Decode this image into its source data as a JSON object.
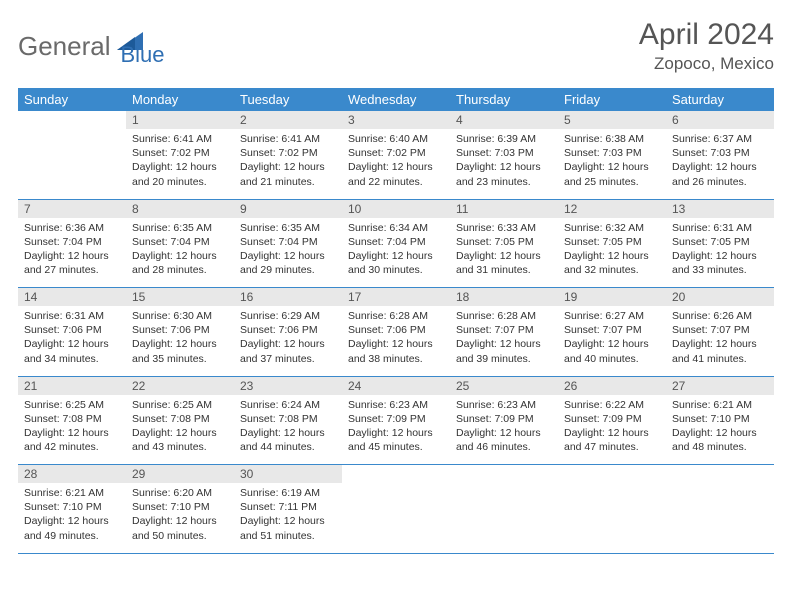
{
  "logo": {
    "part1": "General",
    "part2": "Blue"
  },
  "title": "April 2024",
  "location": "Zopoco, Mexico",
  "colors": {
    "header_bg": "#3a89cc",
    "header_fg": "#ffffff",
    "daynum_bg": "#e8e8e8",
    "border": "#3a89cc",
    "logo_gray": "#6a6a6a",
    "logo_blue": "#2f6fb3"
  },
  "weekdays": [
    "Sunday",
    "Monday",
    "Tuesday",
    "Wednesday",
    "Thursday",
    "Friday",
    "Saturday"
  ],
  "weeks": [
    {
      "nums": [
        "",
        "1",
        "2",
        "3",
        "4",
        "5",
        "6"
      ],
      "cells": [
        "",
        "Sunrise: 6:41 AM\nSunset: 7:02 PM\nDaylight: 12 hours and 20 minutes.",
        "Sunrise: 6:41 AM\nSunset: 7:02 PM\nDaylight: 12 hours and 21 minutes.",
        "Sunrise: 6:40 AM\nSunset: 7:02 PM\nDaylight: 12 hours and 22 minutes.",
        "Sunrise: 6:39 AM\nSunset: 7:03 PM\nDaylight: 12 hours and 23 minutes.",
        "Sunrise: 6:38 AM\nSunset: 7:03 PM\nDaylight: 12 hours and 25 minutes.",
        "Sunrise: 6:37 AM\nSunset: 7:03 PM\nDaylight: 12 hours and 26 minutes."
      ]
    },
    {
      "nums": [
        "7",
        "8",
        "9",
        "10",
        "11",
        "12",
        "13"
      ],
      "cells": [
        "Sunrise: 6:36 AM\nSunset: 7:04 PM\nDaylight: 12 hours and 27 minutes.",
        "Sunrise: 6:35 AM\nSunset: 7:04 PM\nDaylight: 12 hours and 28 minutes.",
        "Sunrise: 6:35 AM\nSunset: 7:04 PM\nDaylight: 12 hours and 29 minutes.",
        "Sunrise: 6:34 AM\nSunset: 7:04 PM\nDaylight: 12 hours and 30 minutes.",
        "Sunrise: 6:33 AM\nSunset: 7:05 PM\nDaylight: 12 hours and 31 minutes.",
        "Sunrise: 6:32 AM\nSunset: 7:05 PM\nDaylight: 12 hours and 32 minutes.",
        "Sunrise: 6:31 AM\nSunset: 7:05 PM\nDaylight: 12 hours and 33 minutes."
      ]
    },
    {
      "nums": [
        "14",
        "15",
        "16",
        "17",
        "18",
        "19",
        "20"
      ],
      "cells": [
        "Sunrise: 6:31 AM\nSunset: 7:06 PM\nDaylight: 12 hours and 34 minutes.",
        "Sunrise: 6:30 AM\nSunset: 7:06 PM\nDaylight: 12 hours and 35 minutes.",
        "Sunrise: 6:29 AM\nSunset: 7:06 PM\nDaylight: 12 hours and 37 minutes.",
        "Sunrise: 6:28 AM\nSunset: 7:06 PM\nDaylight: 12 hours and 38 minutes.",
        "Sunrise: 6:28 AM\nSunset: 7:07 PM\nDaylight: 12 hours and 39 minutes.",
        "Sunrise: 6:27 AM\nSunset: 7:07 PM\nDaylight: 12 hours and 40 minutes.",
        "Sunrise: 6:26 AM\nSunset: 7:07 PM\nDaylight: 12 hours and 41 minutes."
      ]
    },
    {
      "nums": [
        "21",
        "22",
        "23",
        "24",
        "25",
        "26",
        "27"
      ],
      "cells": [
        "Sunrise: 6:25 AM\nSunset: 7:08 PM\nDaylight: 12 hours and 42 minutes.",
        "Sunrise: 6:25 AM\nSunset: 7:08 PM\nDaylight: 12 hours and 43 minutes.",
        "Sunrise: 6:24 AM\nSunset: 7:08 PM\nDaylight: 12 hours and 44 minutes.",
        "Sunrise: 6:23 AM\nSunset: 7:09 PM\nDaylight: 12 hours and 45 minutes.",
        "Sunrise: 6:23 AM\nSunset: 7:09 PM\nDaylight: 12 hours and 46 minutes.",
        "Sunrise: 6:22 AM\nSunset: 7:09 PM\nDaylight: 12 hours and 47 minutes.",
        "Sunrise: 6:21 AM\nSunset: 7:10 PM\nDaylight: 12 hours and 48 minutes."
      ]
    },
    {
      "nums": [
        "28",
        "29",
        "30",
        "",
        "",
        "",
        ""
      ],
      "cells": [
        "Sunrise: 6:21 AM\nSunset: 7:10 PM\nDaylight: 12 hours and 49 minutes.",
        "Sunrise: 6:20 AM\nSunset: 7:10 PM\nDaylight: 12 hours and 50 minutes.",
        "Sunrise: 6:19 AM\nSunset: 7:11 PM\nDaylight: 12 hours and 51 minutes.",
        "",
        "",
        "",
        ""
      ]
    }
  ]
}
